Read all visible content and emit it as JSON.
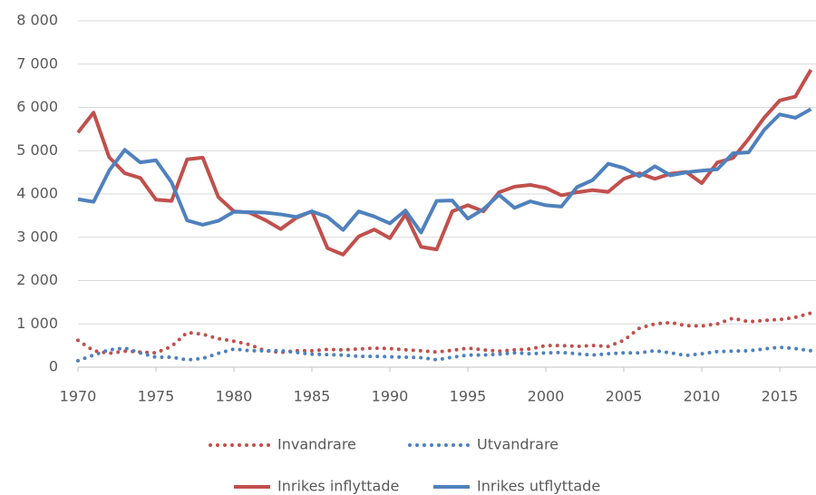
{
  "chart_data": {
    "type": "line",
    "x": [
      1970,
      1971,
      1972,
      1973,
      1974,
      1975,
      1976,
      1977,
      1978,
      1979,
      1980,
      1981,
      1982,
      1983,
      1984,
      1985,
      1986,
      1987,
      1988,
      1989,
      1990,
      1991,
      1992,
      1993,
      1994,
      1995,
      1996,
      1997,
      1998,
      1999,
      2000,
      2001,
      2002,
      2003,
      2004,
      2005,
      2006,
      2007,
      2008,
      2009,
      2010,
      2011,
      2012,
      2013,
      2014,
      2015,
      2016,
      2017
    ],
    "xlim": [
      1970,
      2017
    ],
    "xticks": [
      1970,
      1975,
      1980,
      1985,
      1990,
      1995,
      2000,
      2005,
      2010,
      2015
    ],
    "ylim": [
      0,
      8000
    ],
    "yticks": [
      {
        "value": 0,
        "label": "0"
      },
      {
        "value": 1000,
        "label": "1 000"
      },
      {
        "value": 2000,
        "label": "2 000"
      },
      {
        "value": 3000,
        "label": "3 000"
      },
      {
        "value": 4000,
        "label": "4 000"
      },
      {
        "value": 5000,
        "label": "5 000"
      },
      {
        "value": 6000,
        "label": "6 000"
      },
      {
        "value": 7000,
        "label": "7 000"
      },
      {
        "value": 8000,
        "label": "8 000"
      }
    ],
    "grid": true,
    "legend": "bottom",
    "series": [
      {
        "name": "Invandrare",
        "color": "#c0504d",
        "line_style": "dotted",
        "values": [
          620,
          380,
          320,
          370,
          350,
          330,
          480,
          800,
          760,
          660,
          600,
          520,
          380,
          340,
          380,
          380,
          410,
          400,
          420,
          440,
          430,
          400,
          380,
          350,
          390,
          440,
          400,
          370,
          400,
          420,
          500,
          500,
          480,
          500,
          480,
          620,
          900,
          1000,
          1030,
          960,
          950,
          1000,
          1130,
          1050,
          1080,
          1100,
          1150,
          1250
        ]
      },
      {
        "name": "Utvandrare",
        "color": "#4f81bd",
        "line_style": "dotted",
        "values": [
          150,
          280,
          400,
          440,
          330,
          230,
          230,
          170,
          200,
          320,
          420,
          380,
          380,
          380,
          340,
          300,
          290,
          280,
          250,
          250,
          240,
          230,
          220,
          170,
          230,
          280,
          280,
          300,
          330,
          310,
          330,
          340,
          310,
          280,
          310,
          330,
          330,
          380,
          330,
          270,
          310,
          360,
          370,
          380,
          420,
          460,
          430,
          380
        ]
      },
      {
        "name": "Inrikes inflyttade",
        "color": "#c0504d",
        "line_style": "solid",
        "values": [
          5420,
          5880,
          4850,
          4480,
          4370,
          3870,
          3840,
          4800,
          4840,
          3930,
          3600,
          3570,
          3400,
          3190,
          3450,
          3600,
          2750,
          2600,
          3020,
          3180,
          2980,
          3530,
          2780,
          2720,
          3600,
          3740,
          3600,
          4040,
          4170,
          4210,
          4140,
          3970,
          4040,
          4090,
          4050,
          4350,
          4480,
          4350,
          4470,
          4510,
          4250,
          4730,
          4830,
          5270,
          5760,
          6160,
          6250,
          6870
        ]
      },
      {
        "name": "Inrikes utflyttade",
        "color": "#4f81bd",
        "line_style": "solid",
        "values": [
          3880,
          3820,
          4540,
          5020,
          4730,
          4780,
          4270,
          3390,
          3290,
          3380,
          3590,
          3580,
          3570,
          3530,
          3470,
          3600,
          3470,
          3170,
          3600,
          3480,
          3320,
          3620,
          3110,
          3840,
          3850,
          3430,
          3650,
          3980,
          3680,
          3830,
          3740,
          3710,
          4160,
          4320,
          4700,
          4600,
          4410,
          4640,
          4430,
          4500,
          4540,
          4570,
          4940,
          4960,
          5480,
          5840,
          5760,
          5960
        ]
      }
    ]
  }
}
